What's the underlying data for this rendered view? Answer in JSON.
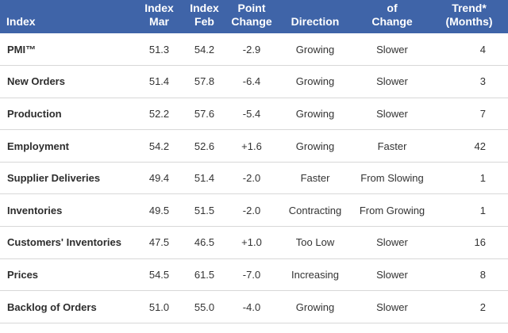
{
  "header": {
    "index": [
      "Index"
    ],
    "mar": [
      "Index",
      "Mar"
    ],
    "feb": [
      "Index",
      "Feb"
    ],
    "change": [
      "Point",
      "Change"
    ],
    "direction": [
      "Direction"
    ],
    "rate": [
      "of",
      "Change"
    ],
    "trend": [
      "Trend*",
      "(Months)"
    ]
  },
  "rows": [
    {
      "index": "PMI™",
      "mar": "51.3",
      "feb": "54.2",
      "change": "-2.9",
      "direction": "Growing",
      "rate": "Slower",
      "trend": "4"
    },
    {
      "index": "New Orders",
      "mar": "51.4",
      "feb": "57.8",
      "change": "-6.4",
      "direction": "Growing",
      "rate": "Slower",
      "trend": "3"
    },
    {
      "index": "Production",
      "mar": "52.2",
      "feb": "57.6",
      "change": "-5.4",
      "direction": "Growing",
      "rate": "Slower",
      "trend": "7"
    },
    {
      "index": "Employment",
      "mar": "54.2",
      "feb": "52.6",
      "change": "+1.6",
      "direction": "Growing",
      "rate": "Faster",
      "trend": "42"
    },
    {
      "index": "Supplier Deliveries",
      "mar": "49.4",
      "feb": "51.4",
      "change": "-2.0",
      "direction": "Faster",
      "rate": "From Slowing",
      "trend": "1"
    },
    {
      "index": "Inventories",
      "mar": "49.5",
      "feb": "51.5",
      "change": "-2.0",
      "direction": "Contracting",
      "rate": "From Growing",
      "trend": "1"
    },
    {
      "index": "Customers' Inventories",
      "mar": "47.5",
      "feb": "46.5",
      "change": "+1.0",
      "direction": "Too Low",
      "rate": "Slower",
      "trend": "16"
    },
    {
      "index": "Prices",
      "mar": "54.5",
      "feb": "61.5",
      "change": "-7.0",
      "direction": "Increasing",
      "rate": "Slower",
      "trend": "8"
    },
    {
      "index": "Backlog of Orders",
      "mar": "51.0",
      "feb": "55.0",
      "change": "-4.0",
      "direction": "Growing",
      "rate": "Slower",
      "trend": "2"
    }
  ],
  "colors": {
    "header_bg": "#3f64a8",
    "header_text": "#ffffff",
    "row_border": "#d8d8d8"
  }
}
